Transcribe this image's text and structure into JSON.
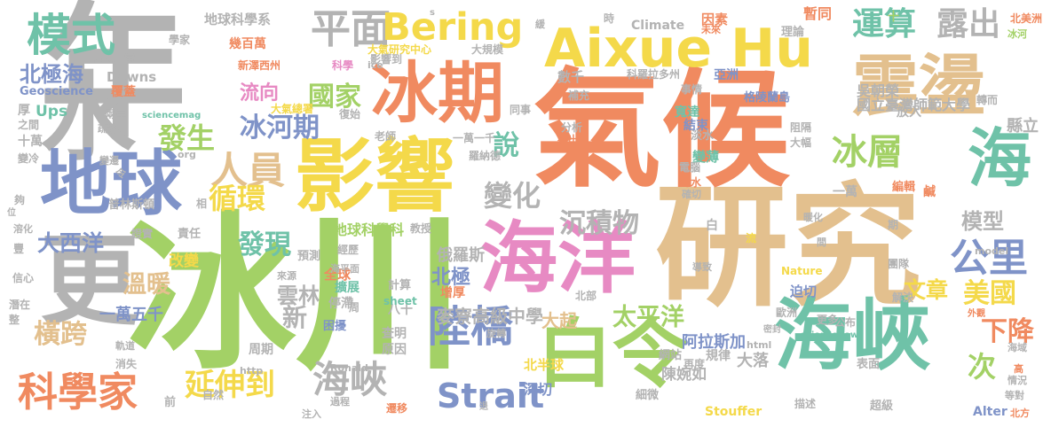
{
  "palette": {
    "green": "#a3d166",
    "teal": "#6fc2a8",
    "orange": "#f08a60",
    "yellow": "#f4d94a",
    "tan": "#e3c08e",
    "blue": "#7f93c8",
    "pink": "#e78ac3",
    "gray": "#b3b3b3"
  },
  "words": [
    {
      "text": "研究",
      "color": "#e3c08e"
    },
    {
      "text": "氣候",
      "color": "#f08a60"
    },
    {
      "text": "年",
      "color": "#b3b3b3"
    },
    {
      "text": "冰川",
      "color": "#a3d166"
    },
    {
      "text": "更",
      "color": "#b3b3b3"
    },
    {
      "text": "水",
      "color": "#b3b3b3"
    },
    {
      "text": "地球",
      "color": "#7f93c8"
    },
    {
      "text": "影響",
      "color": "#f4d94a"
    },
    {
      "text": "冰期",
      "color": "#f08a60"
    },
    {
      "text": "海洋",
      "color": "#e78ac3"
    },
    {
      "text": "白令",
      "color": "#a3d166"
    },
    {
      "text": "海峽",
      "color": "#6fc2a8"
    },
    {
      "text": "震盪",
      "color": "#e3c08e"
    },
    {
      "text": "Aixue Hu",
      "color": "#f4d94a"
    },
    {
      "text": "海",
      "color": "#6fc2a8"
    },
    {
      "text": "模式",
      "color": "#6fc2a8"
    },
    {
      "text": "平面",
      "color": "#b3b3b3"
    },
    {
      "text": "Bering",
      "color": "#f4d94a"
    },
    {
      "text": "運算",
      "color": "#6fc2a8"
    },
    {
      "text": "露出",
      "color": "#b3b3b3"
    },
    {
      "text": "科學家",
      "color": "#f08a60"
    },
    {
      "text": "陸橋",
      "color": "#7f93c8"
    },
    {
      "text": "Strait",
      "color": "#7f93c8"
    },
    {
      "text": "延伸到",
      "color": "#f4d94a"
    },
    {
      "text": "海峽",
      "color": "#b3b3b3"
    },
    {
      "text": "人員",
      "color": "#e3c08e"
    },
    {
      "text": "冰層",
      "color": "#a3d166"
    },
    {
      "text": "公里",
      "color": "#7f93c8"
    },
    {
      "text": "模型",
      "color": "#b3b3b3"
    },
    {
      "text": "美國",
      "color": "#f4d94a"
    },
    {
      "text": "下降",
      "color": "#f08a60"
    },
    {
      "text": "次",
      "color": "#a3d166"
    },
    {
      "text": "變化",
      "color": "#b3b3b3"
    },
    {
      "text": "沉積物",
      "color": "#b3b3b3"
    },
    {
      "text": "冰河期",
      "color": "#7f93c8"
    },
    {
      "text": "流向",
      "color": "#e78ac3"
    },
    {
      "text": "國家",
      "color": "#a3d166"
    },
    {
      "text": "發生",
      "color": "#a3d166"
    },
    {
      "text": "說",
      "color": "#6fc2a8"
    },
    {
      "text": "循環",
      "color": "#f4d94a"
    },
    {
      "text": "發現",
      "color": "#6fc2a8"
    },
    {
      "text": "大西洋",
      "color": "#7f93c8"
    },
    {
      "text": "溫暖",
      "color": "#e3c08e"
    },
    {
      "text": "橫跨",
      "color": "#e3c08e"
    },
    {
      "text": "北極海",
      "color": "#7f93c8"
    },
    {
      "text": "太平洋",
      "color": "#a3d166"
    },
    {
      "text": "文章",
      "color": "#f4d94a"
    },
    {
      "text": "新",
      "color": "#b3b3b3"
    },
    {
      "text": "雲林",
      "color": "#b3b3b3"
    },
    {
      "text": "北極",
      "color": "#7f93c8"
    },
    {
      "text": "麥寮高級中學",
      "color": "#b3b3b3"
    },
    {
      "text": "大起",
      "color": "#e3c08e"
    },
    {
      "text": "地球科學科",
      "color": "#a3d166"
    },
    {
      "text": "俄羅斯",
      "color": "#b3b3b3"
    },
    {
      "text": "大落",
      "color": "#b3b3b3"
    },
    {
      "text": "陳婉如",
      "color": "#b3b3b3"
    },
    {
      "text": "阿拉斯加",
      "color": "#7f93c8"
    },
    {
      "text": "深切",
      "color": "#7f93c8"
    },
    {
      "text": "北半球",
      "color": "#f4d94a"
    },
    {
      "text": "一萬五千",
      "color": "#7f93c8"
    },
    {
      "text": "國立臺灣師範大學",
      "color": "#b3b3b3"
    },
    {
      "text": "吳朝榮",
      "color": "#b3b3b3"
    },
    {
      "text": "縣立",
      "color": "#b3b3b3"
    },
    {
      "text": "地球科學系",
      "color": "#b3b3b3"
    },
    {
      "text": "大氣研究中心",
      "color": "#f4d94a"
    },
    {
      "text": "大規模",
      "color": "#b3b3b3"
    },
    {
      "text": "科羅拉多州",
      "color": "#b3b3b3"
    },
    {
      "text": "格陵蘭島",
      "color": "#7f93c8"
    },
    {
      "text": "亞洲",
      "color": "#7f93c8"
    },
    {
      "text": "Climate",
      "color": "#b3b3b3"
    },
    {
      "text": "因素",
      "color": "#f08a60"
    },
    {
      "text": "Downs",
      "color": "#b3b3b3"
    },
    {
      "text": "Ups",
      "color": "#6fc2a8"
    },
    {
      "text": "Geoscience",
      "color": "#7f93c8"
    },
    {
      "text": "幾百萬",
      "color": "#f08a60"
    },
    {
      "text": "新澤西州",
      "color": "#f08a60"
    },
    {
      "text": "影響到",
      "color": "#b3b3b3"
    },
    {
      "text": "數千",
      "color": "#b3b3b3"
    },
    {
      "text": "結束",
      "color": "#7f93c8"
    },
    {
      "text": "寬達",
      "color": "#6fc2a8"
    },
    {
      "text": "變薄",
      "color": "#6fc2a8"
    },
    {
      "text": "一萬一千",
      "color": "#b3b3b3"
    },
    {
      "text": "老師",
      "color": "#b3b3b3"
    },
    {
      "text": "大氣總署",
      "color": "#f4d94a"
    },
    {
      "text": "覆蓋",
      "color": "#f08a60"
    },
    {
      "text": "兩岸",
      "color": "#b3b3b3"
    },
    {
      "text": "十萬",
      "color": "#b3b3b3"
    },
    {
      "text": "之間",
      "color": "#b3b3b3"
    },
    {
      "text": "厚",
      "color": "#b3b3b3"
    },
    {
      "text": "變冷",
      "color": "#b3b3b3"
    },
    {
      "text": "責任",
      "color": "#b3b3b3"
    },
    {
      "text": "改變",
      "color": "#f4d94a"
    },
    {
      "text": "證實",
      "color": "#b3b3b3"
    },
    {
      "text": "預測",
      "color": "#b3b3b3"
    },
    {
      "text": "全球",
      "color": "#f08a60"
    },
    {
      "text": "擴展",
      "color": "#6fc2a8"
    },
    {
      "text": "困擾",
      "color": "#7f93c8"
    },
    {
      "text": "停滯",
      "color": "#b3b3b3"
    },
    {
      "text": "八十",
      "color": "#b3b3b3"
    },
    {
      "text": "計算",
      "color": "#b3b3b3"
    },
    {
      "text": "查明",
      "color": "#b3b3b3"
    },
    {
      "text": "原因",
      "color": "#b3b3b3"
    },
    {
      "text": "周期",
      "color": "#b3b3b3"
    },
    {
      "text": "教授",
      "color": "#b3b3b3"
    },
    {
      "text": "增厚",
      "color": "#f08a60"
    },
    {
      "text": "規律",
      "color": "#b3b3b3"
    },
    {
      "text": "細微",
      "color": "#b3b3b3"
    },
    {
      "text": "迫切",
      "color": "#7f93c8"
    },
    {
      "text": "歐洲",
      "color": "#b3b3b3"
    },
    {
      "text": "一萬",
      "color": "#b3b3b3"
    },
    {
      "text": "Alter",
      "color": "#7f93c8"
    },
    {
      "text": "Stouffer",
      "color": "#f4d94a"
    },
    {
      "text": "Nature",
      "color": "#f4d94a"
    },
    {
      "text": "sciencemag",
      "color": "#6fc2a8"
    },
    {
      "text": "sciencenow",
      "color": "#6fc2a8"
    },
    {
      "text": "sheet",
      "color": "#6fc2a8"
    },
    {
      "text": "Ronald",
      "color": "#b3b3b3"
    },
    {
      "text": "http",
      "color": "#b3b3b3"
    },
    {
      "text": "html",
      "color": "#b3b3b3"
    },
    {
      "text": "model",
      "color": "#b3b3b3"
    },
    {
      "text": "news",
      "color": "#b3b3b3"
    },
    {
      "text": "org",
      "color": "#b3b3b3"
    },
    {
      "text": "ice",
      "color": "#b3b3b3"
    },
    {
      "text": "s",
      "color": "#b3b3b3"
    },
    {
      "text": "表面",
      "color": "#b3b3b3"
    },
    {
      "text": "常",
      "color": "#b3b3b3"
    },
    {
      "text": "學家",
      "color": "#b3b3b3"
    },
    {
      "text": "科學",
      "color": "#e78ac3"
    },
    {
      "text": "北美洲",
      "color": "#f08a60"
    },
    {
      "text": "冰河",
      "color": "#a3d166"
    },
    {
      "text": "十",
      "color": "#a3d166"
    },
    {
      "text": "暫同",
      "color": "#f08a60"
    },
    {
      "text": "理論",
      "color": "#b3b3b3"
    },
    {
      "text": "時",
      "color": "#b3b3b3"
    },
    {
      "text": "緩",
      "color": "#b3b3b3"
    },
    {
      "text": "未來",
      "color": "#f08a60"
    },
    {
      "text": "事情",
      "color": "#b3b3b3"
    },
    {
      "text": "補充",
      "color": "#b3b3b3"
    },
    {
      "text": "同事",
      "color": "#b3b3b3"
    },
    {
      "text": "分析",
      "color": "#b3b3b3"
    },
    {
      "text": "找出",
      "color": "#f08a60"
    },
    {
      "text": "淡水",
      "color": "#b3b3b3"
    },
    {
      "text": "放入",
      "color": "#b3b3b3"
    },
    {
      "text": "轉而",
      "color": "#b3b3b3"
    },
    {
      "text": "大幅",
      "color": "#b3b3b3"
    },
    {
      "text": "阻隔",
      "color": "#b3b3b3"
    },
    {
      "text": "電腦",
      "color": "#b3b3b3"
    },
    {
      "text": "海水",
      "color": "#f08a60"
    },
    {
      "text": "確切",
      "color": "#b3b3b3"
    },
    {
      "text": "編輯",
      "color": "#f08a60"
    },
    {
      "text": "鹹",
      "color": "#f08a60"
    },
    {
      "text": "暖化",
      "color": "#b3b3b3"
    },
    {
      "text": "流",
      "color": "#f4d94a"
    },
    {
      "text": "期",
      "color": "#b3b3b3"
    },
    {
      "text": "間",
      "color": "#b3b3b3"
    },
    {
      "text": "白",
      "color": "#b3b3b3"
    },
    {
      "text": "導致",
      "color": "#b3b3b3"
    },
    {
      "text": "團隊",
      "color": "#b3b3b3"
    },
    {
      "text": "解決",
      "color": "#b3b3b3"
    },
    {
      "text": "公布",
      "color": "#b3b3b3"
    },
    {
      "text": "更多",
      "color": "#b3b3b3"
    },
    {
      "text": "密封",
      "color": "#b3b3b3"
    },
    {
      "text": "外觀",
      "color": "#f08a60"
    },
    {
      "text": "海域",
      "color": "#b3b3b3"
    },
    {
      "text": "情況",
      "color": "#b3b3b3"
    },
    {
      "text": "高",
      "color": "#f08a60"
    },
    {
      "text": "等對",
      "color": "#b3b3b3"
    },
    {
      "text": "北方",
      "color": "#f08a60"
    },
    {
      "text": "超級",
      "color": "#b3b3b3"
    },
    {
      "text": "描述",
      "color": "#b3b3b3"
    },
    {
      "text": "網站",
      "color": "#b3b3b3"
    },
    {
      "text": "再度",
      "color": "#b3b3b3"
    },
    {
      "text": "北部",
      "color": "#b3b3b3"
    },
    {
      "text": "旋轉",
      "color": "#b3b3b3"
    },
    {
      "text": "退",
      "color": "#b3b3b3"
    },
    {
      "text": "遷移",
      "color": "#f08a60"
    },
    {
      "text": "過程",
      "color": "#b3b3b3"
    },
    {
      "text": "周",
      "color": "#b3b3b3"
    },
    {
      "text": "注入",
      "color": "#b3b3b3"
    },
    {
      "text": "自然",
      "color": "#b3b3b3"
    },
    {
      "text": "前",
      "color": "#b3b3b3"
    },
    {
      "text": "消失",
      "color": "#b3b3b3"
    },
    {
      "text": "軌道",
      "color": "#b3b3b3"
    },
    {
      "text": "整",
      "color": "#b3b3b3"
    },
    {
      "text": "潛在",
      "color": "#b3b3b3"
    },
    {
      "text": "信心",
      "color": "#b3b3b3"
    },
    {
      "text": "豐",
      "color": "#b3b3b3"
    },
    {
      "text": "溶化",
      "color": "#b3b3b3"
    },
    {
      "text": "夠",
      "color": "#b3b3b3"
    },
    {
      "text": "位",
      "color": "#b3b3b3"
    },
    {
      "text": "令",
      "color": "#b3b3b3"
    },
    {
      "text": "普林斯頓",
      "color": "#b3b3b3"
    },
    {
      "text": "相",
      "color": "#b3b3b3"
    },
    {
      "text": "變遷",
      "color": "#b3b3b3"
    },
    {
      "text": "疏通",
      "color": "#b3b3b3"
    },
    {
      "text": "復始",
      "color": "#b3b3b3"
    },
    {
      "text": "羅納德",
      "color": "#b3b3b3"
    },
    {
      "text": "經歷",
      "color": "#b3b3b3"
    },
    {
      "text": "海平面",
      "color": "#b3b3b3"
    },
    {
      "text": "來源",
      "color": "#b3b3b3"
    }
  ]
}
